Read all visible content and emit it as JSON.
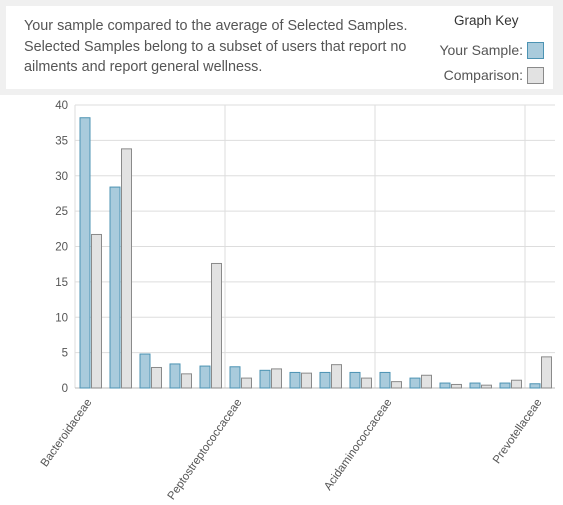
{
  "info": {
    "description": "Your sample compared to the average of Selected Samples. Selected Samples belong to a subset of users that report no ailments and report general wellness."
  },
  "graph_key": {
    "title": "Graph Key",
    "your_sample_label": "Your Sample:",
    "comparison_label": "Comparison:"
  },
  "colors": {
    "your_sample_fill": "#a9cbdc",
    "your_sample_stroke": "#4c93b3",
    "comparison_fill": "#e2e2e2",
    "comparison_stroke": "#8a8a8a",
    "grid": "#dddddd"
  },
  "chart_data": {
    "type": "bar",
    "title": "",
    "xlabel": "",
    "ylabel": "",
    "ylim": [
      0,
      40
    ],
    "yticks": [
      0,
      5,
      10,
      15,
      20,
      25,
      30,
      35,
      40
    ],
    "grid": true,
    "categories": [
      "Bacteroidaceae",
      "",
      "",
      "",
      "",
      "Peptostreptococcaceae",
      "",
      "",
      "",
      "",
      "Acidaminococcaceae",
      "",
      "",
      "",
      "",
      "Prevotellaceae"
    ],
    "series": [
      {
        "name": "Your Sample",
        "values": [
          38.2,
          28.4,
          4.8,
          3.4,
          3.1,
          3.0,
          2.5,
          2.2,
          2.2,
          2.2,
          2.2,
          1.4,
          0.7,
          0.7,
          0.7,
          0.6
        ]
      },
      {
        "name": "Comparison",
        "values": [
          21.7,
          33.8,
          2.9,
          2.0,
          17.6,
          1.4,
          2.7,
          2.1,
          3.3,
          1.4,
          0.9,
          1.8,
          0.5,
          0.4,
          1.1,
          4.4
        ]
      }
    ]
  }
}
